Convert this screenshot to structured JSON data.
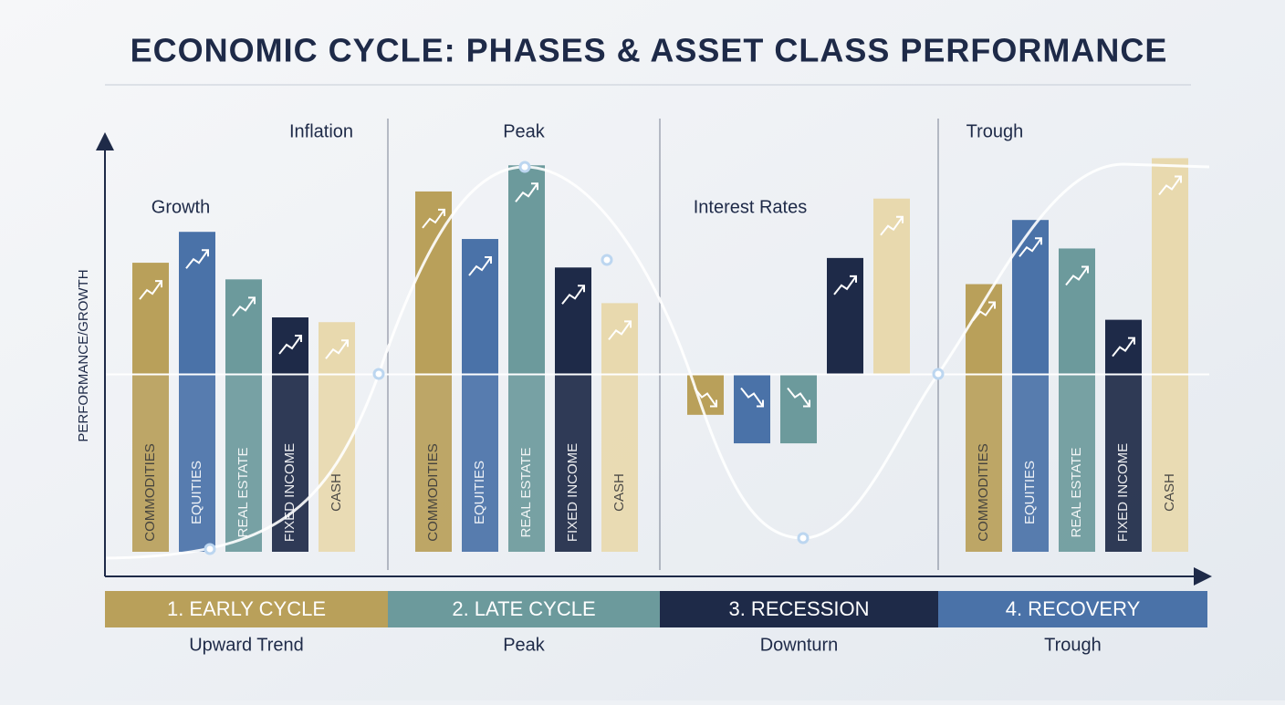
{
  "chart_data": {
    "type": "bar",
    "title": "ECONOMIC CYCLE: PHASES & ASSET CLASS PERFORMANCE",
    "y_label": "PERFORMANCE/GROWTH",
    "annotations": [
      "Growth",
      "Inflation",
      "Peak",
      "Interest Rates",
      "Trough"
    ],
    "categories": [
      "COMMODITIES",
      "EQUITIES",
      "REAL ESTATE",
      "FIXED INCOME",
      "CASH"
    ],
    "colors": [
      "#b9a05a",
      "#4a72a8",
      "#6c9a9c",
      "#1e2a48",
      "#e8d9ae"
    ],
    "ylim": [
      -85,
      100
    ],
    "phases": [
      {
        "name": "1. EARLY CYCLE",
        "caption": "Upward Trend",
        "color": "#b9a05a",
        "show_labels": true,
        "values": [
          47,
          60,
          40,
          24,
          22
        ]
      },
      {
        "name": "2. LATE CYCLE",
        "caption": "Peak",
        "color": "#6c9a9c",
        "show_labels": true,
        "values": [
          77,
          57,
          88,
          45,
          30
        ]
      },
      {
        "name": "3. RECESSION",
        "caption": "Downturn",
        "color": "#1e2a48",
        "show_labels": false,
        "values": [
          -17,
          -29,
          -29,
          49,
          74
        ]
      },
      {
        "name": "4. RECOVERY",
        "caption": "Trough",
        "color": "#4a72a8",
        "show_labels": true,
        "values": [
          38,
          65,
          53,
          23,
          91
        ]
      }
    ]
  }
}
